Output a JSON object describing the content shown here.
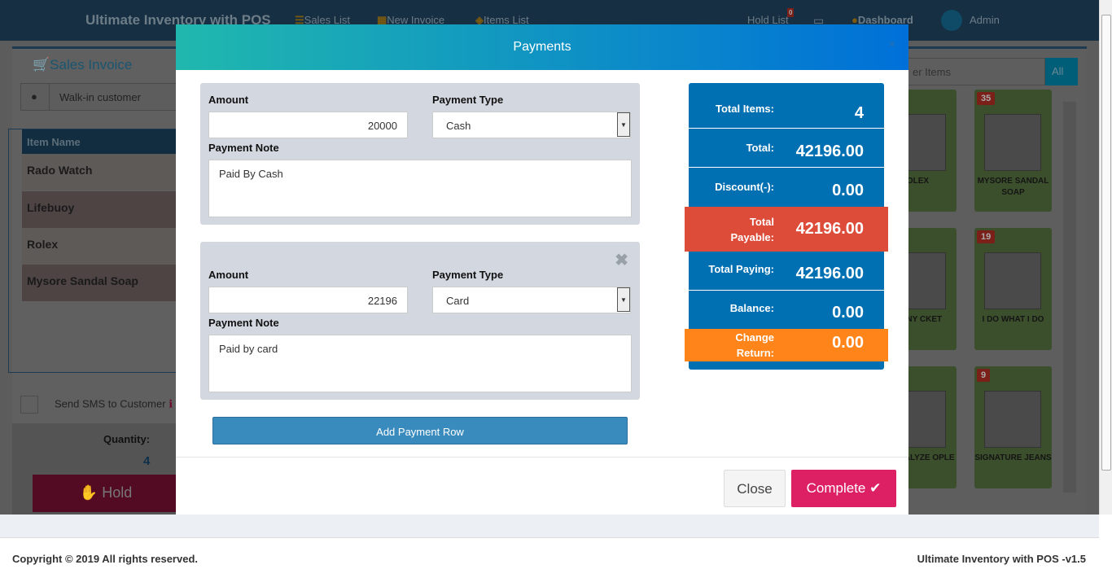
{
  "nav": {
    "brand": "Ultimate Inventory with POS",
    "sales_list": "Sales List",
    "new_invoice": "New Invoice",
    "items_list": "Items List",
    "hold_list": "Hold List",
    "hold_count": "0",
    "dashboard": "Dashboard",
    "user": "Admin"
  },
  "left": {
    "title": "Sales Invoice",
    "customer": "Walk-in customer",
    "col_item": "Item Name",
    "items": [
      "Rado Watch",
      "Lifebuoy",
      "Rolex",
      "Mysore Sandal Soap"
    ],
    "sms": "Send SMS to Customer",
    "quantity_label": "Quantity:",
    "quantity": "4",
    "hold": "Hold"
  },
  "right": {
    "search_placeholder": "er Items",
    "all": "All",
    "cards": [
      {
        "name": "OLEX",
        "count": ""
      },
      {
        "name": "MYSORE SANDAL SOAP",
        "count": "35"
      },
      {
        "name": "MANY CKET",
        "count": ""
      },
      {
        "name": "I DO WHAT I DO",
        "count": "19"
      },
      {
        "name": "W TO ALYZE OPLE",
        "count": ""
      },
      {
        "name": "SIGNATURE JEANS",
        "count": "9"
      }
    ]
  },
  "modal": {
    "title": "Payments",
    "close_x": "×",
    "payments": [
      {
        "amount_label": "Amount",
        "amount": "20000",
        "type_label": "Payment Type",
        "type": "Cash",
        "note_label": "Payment Note",
        "note": "Paid By Cash"
      },
      {
        "amount_label": "Amount",
        "amount": "22196",
        "type_label": "Payment Type",
        "type": "Card",
        "note_label": "Payment Note",
        "note": "Paid by card"
      }
    ],
    "add_row": "Add Payment Row",
    "close": "Close",
    "complete": "Complete",
    "summary": {
      "total_items_label": "Total Items:",
      "total_items": "4",
      "total_label": "Total:",
      "total": "42196.00",
      "discount_label": "Discount(-):",
      "discount": "0.00",
      "payable_label": "Total Payable:",
      "payable": "42196.00",
      "paying_label": "Total Paying:",
      "paying": "42196.00",
      "balance_label": "Balance:",
      "balance": "0.00",
      "change_label": "Change Return:",
      "change": "0.00"
    },
    "colors": {
      "summary": "#0070b2",
      "payable": "#dd4b39",
      "change": "#ff851b",
      "complete": "#dd1f63"
    }
  },
  "footer": {
    "copyright": "Copyright © 2019 All rights reserved.",
    "version": "Ultimate Inventory with POS -v1.5"
  }
}
